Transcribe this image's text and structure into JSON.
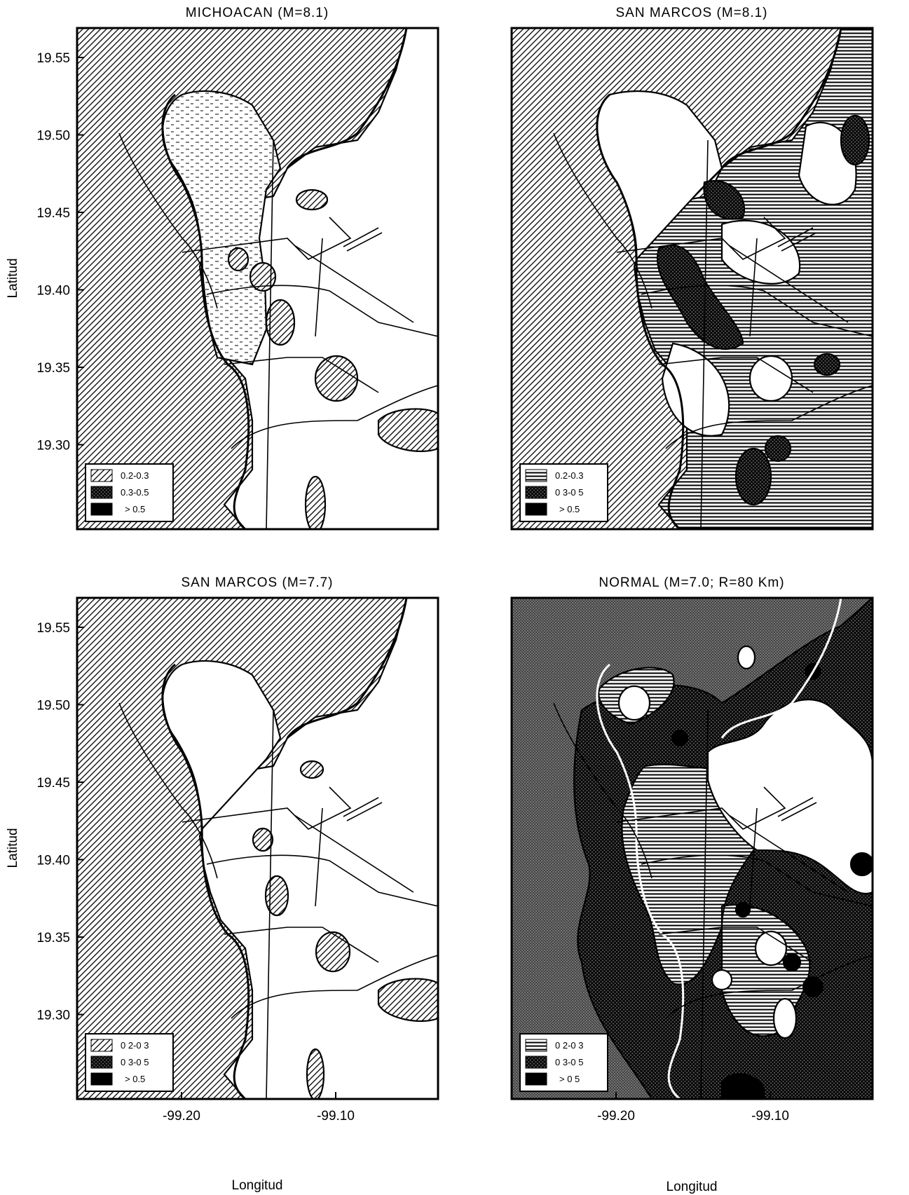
{
  "figure": {
    "panels": [
      {
        "id": "michoacan-81",
        "title": "MICHOACAN (M=8.1)",
        "legend": [
          {
            "range": "0.2-0.3",
            "pattern": "hatch"
          },
          {
            "range": "0.3-0.5",
            "pattern": "crosshatch"
          },
          {
            "range": "> 0.5",
            "pattern": "solid"
          }
        ],
        "show_x_ticks": false,
        "show_y_ticks": true
      },
      {
        "id": "san-marcos-81",
        "title": "SAN MARCOS (M=8.1)",
        "legend": [
          {
            "range": "0.2-0.3",
            "pattern": "hatch"
          },
          {
            "range": "0 3-0 5",
            "pattern": "crosshatch"
          },
          {
            "range": "> 0.5",
            "pattern": "solid"
          }
        ],
        "show_x_ticks": false,
        "show_y_ticks": false
      },
      {
        "id": "san-marcos-77",
        "title": "SAN MARCOS (M=7.7)",
        "legend": [
          {
            "range": "0 2-0 3",
            "pattern": "hatch"
          },
          {
            "range": "0 3-0 5",
            "pattern": "crosshatch"
          },
          {
            "range": "> 0.5",
            "pattern": "solid"
          }
        ],
        "show_x_ticks": true,
        "show_y_ticks": true
      },
      {
        "id": "normal-70",
        "title": "NORMAL (M=7.0; R=80 Km)",
        "legend": [
          {
            "range": "0 2-0 3",
            "pattern": "hatch"
          },
          {
            "range": "0 3-0 5",
            "pattern": "crosshatch"
          },
          {
            "range": "> 0 5",
            "pattern": "solid"
          }
        ],
        "show_x_ticks": true,
        "show_y_ticks": false
      }
    ],
    "y_axis": {
      "label": "Latitud",
      "ticks": [
        "19.55",
        "19.50",
        "19.45",
        "19.40",
        "19.35",
        "19.30"
      ]
    },
    "x_axis": {
      "label": "Longitud",
      "ticks": [
        "-99.20",
        "-99.10"
      ]
    },
    "colors": {
      "ink": "#000000",
      "paper": "#ffffff",
      "hatch": "#000000"
    }
  }
}
